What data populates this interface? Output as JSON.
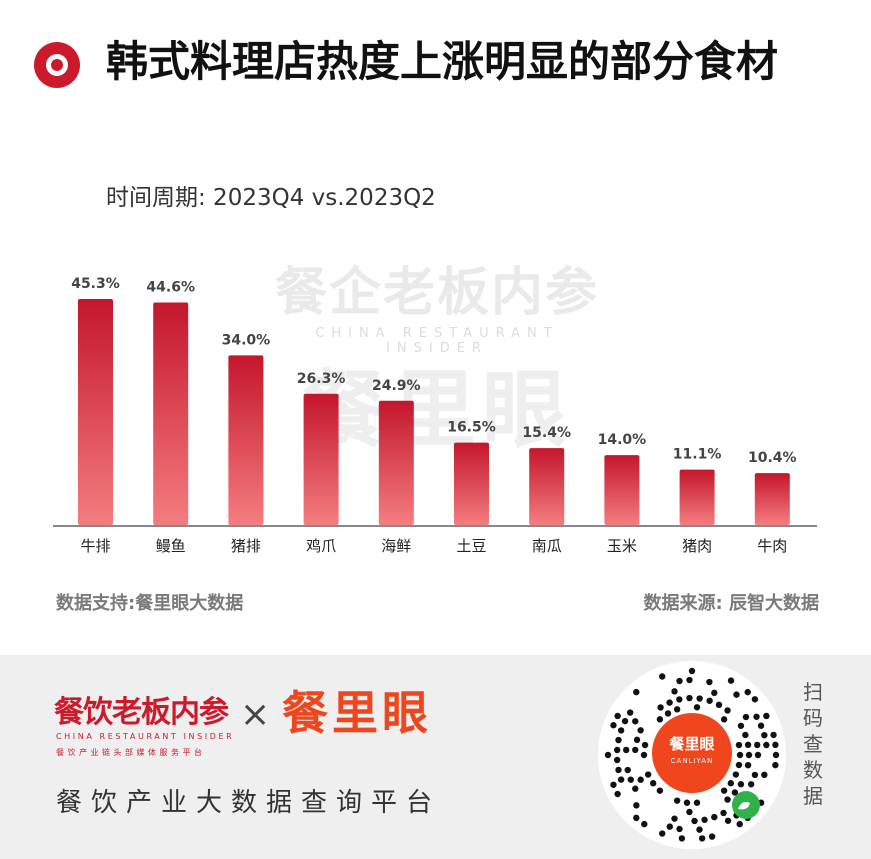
{
  "header": {
    "title": "韩式料理店热度上涨明显的部分食材",
    "period": "时间周期: 2023Q4 vs.2023Q2"
  },
  "watermark": {
    "line1": "餐企老板内参",
    "line2": "CHINA RESTAURANT INSIDER",
    "line3": "餐里眼"
  },
  "colors": {
    "accent": "#cc1a2c",
    "bar_top": "#c4162c",
    "bar_bottom": "#f47d80",
    "brand_orange": "#f0461e"
  },
  "chart_data": {
    "type": "bar",
    "categories": [
      "牛排",
      "鳗鱼",
      "猪排",
      "鸡爪",
      "海鲜",
      "土豆",
      "南瓜",
      "玉米",
      "猪肉",
      "牛肉"
    ],
    "values": [
      45.3,
      44.6,
      34.0,
      26.3,
      24.9,
      16.5,
      15.4,
      14.0,
      11.1,
      10.4
    ],
    "value_labels": [
      "45.3%",
      "44.6%",
      "34.0%",
      "26.3%",
      "24.9%",
      "16.5%",
      "15.4%",
      "14.0%",
      "11.1%",
      "10.4%"
    ],
    "title": "韩式料理店热度上涨明显的部分食材",
    "xlabel": "",
    "ylabel": "",
    "ylim": [
      0,
      50
    ],
    "grid": false,
    "legend": "none"
  },
  "footer": {
    "support": "数据支持:餐里眼大数据",
    "source": "数据来源: 辰智大数据"
  },
  "bottom": {
    "brand1": "餐饮老板内参",
    "brand1_en": "CHINA RESTAURANT INSIDER",
    "brand1_sub": "餐饮产业链头部媒体服务平台",
    "cross": "×",
    "brand2": "餐里眼",
    "slogan": "餐饮产业大数据查询平台",
    "qr_center": "餐里眼",
    "qr_center_en": "CANLIYAN",
    "scan": "扫码查数据",
    "qr_icon": "qr-code-icon"
  }
}
